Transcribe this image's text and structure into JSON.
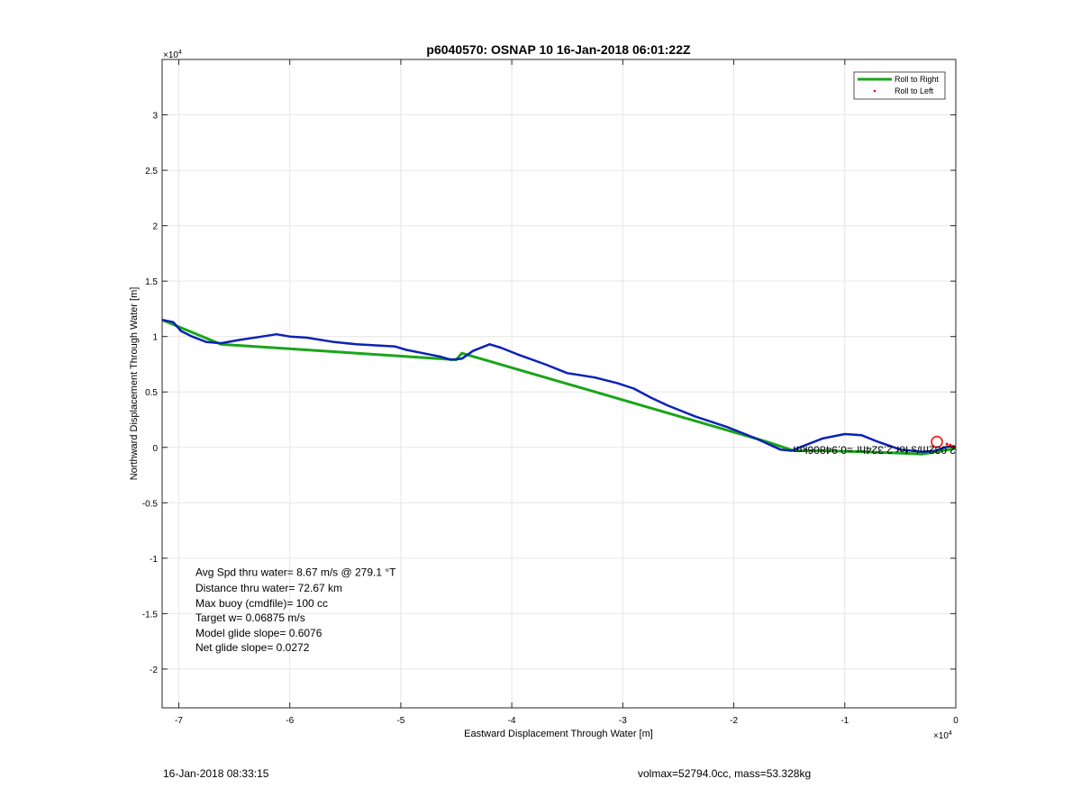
{
  "chart_data": {
    "type": "line",
    "title": "p6040570: OSNAP 10 16-Jan-2018 06:01:22Z",
    "xlabel": "Eastward Displacement Through Water [m]",
    "ylabel": "Northward Displacement Through Water [m]",
    "x_exponent_label": "×10",
    "x_exponent": "4",
    "y_exponent_label": "×10",
    "y_exponent": "4",
    "xlim": [
      -7.15,
      0
    ],
    "ylim": [
      -2.35,
      3.5
    ],
    "xticks": [
      -7,
      -6,
      -5,
      -4,
      -3,
      -2,
      -1,
      0
    ],
    "yticks": [
      -2,
      -1.5,
      -1,
      -0.5,
      0,
      0.5,
      1,
      1.5,
      2,
      2.5,
      3
    ],
    "xtick_labels": [
      "-7",
      "-6",
      "-5",
      "-4",
      "-3",
      "-2",
      "-1",
      "0"
    ],
    "ytick_labels": [
      "-2",
      "-1.5",
      "-1",
      "-0.5",
      "0",
      "0.5",
      "1",
      "1.5",
      "2",
      "2.5",
      "3"
    ],
    "grid": true,
    "legend_position": "top-right",
    "legend": [
      {
        "name": "Roll to Right",
        "color": "#1aa51a",
        "style": "line"
      },
      {
        "name": "Roll to Left",
        "color": "#ff0000",
        "style": "dot"
      }
    ],
    "series": [
      {
        "name": "Roll to Right",
        "color": "#1aa51a",
        "x": [
          -7.15,
          -6.62,
          -4.5,
          -4.45,
          -1.7,
          -1.46,
          -1.2,
          -0.8,
          -0.3,
          0
        ],
        "y": [
          1.15,
          0.93,
          0.79,
          0.85,
          0.05,
          -0.03,
          -0.03,
          -0.04,
          -0.06,
          -0.01
        ]
      },
      {
        "name": "",
        "color": "#0a22b4",
        "x": [
          -7.15,
          -7.05,
          -6.98,
          -6.88,
          -6.75,
          -6.62,
          -6.45,
          -6.25,
          -6.12,
          -6.0,
          -5.85,
          -5.6,
          -5.4,
          -5.05,
          -4.95,
          -4.8,
          -4.65,
          -4.55,
          -4.45,
          -4.35,
          -4.2,
          -4.1,
          -3.95,
          -3.7,
          -3.5,
          -3.25,
          -3.05,
          -2.9,
          -2.75,
          -2.6,
          -2.35,
          -2.05,
          -1.8,
          -1.58,
          -1.48,
          -1.38,
          -1.2,
          -1.0,
          -0.85,
          -0.7,
          -0.5,
          -0.3,
          -0.18,
          -0.1,
          -0.05,
          0
        ],
        "y": [
          1.15,
          1.13,
          1.05,
          1.0,
          0.95,
          0.94,
          0.97,
          1.0,
          1.02,
          1.0,
          0.99,
          0.95,
          0.93,
          0.91,
          0.88,
          0.85,
          0.82,
          0.79,
          0.8,
          0.87,
          0.93,
          0.9,
          0.84,
          0.75,
          0.67,
          0.63,
          0.58,
          0.53,
          0.45,
          0.38,
          0.28,
          0.18,
          0.08,
          -0.02,
          -0.03,
          0.01,
          0.08,
          0.12,
          0.11,
          0.05,
          -0.02,
          -0.04,
          -0.03,
          0.0,
          0.01,
          0.0
        ]
      },
      {
        "name": "Roll to Left",
        "color": "#ff0000",
        "x": [
          -0.08,
          -0.05,
          -0.02
        ],
        "y": [
          0.03,
          0.02,
          0.01
        ]
      }
    ],
    "annotations": [
      {
        "text": "Avg Spd thru water=  8.67 m/s @ 279.1 °T",
        "x": -6.85,
        "y": -1.16
      },
      {
        "text": "Distance thru water= 72.67 km",
        "x": -6.85,
        "y": -1.3
      },
      {
        "text": "Max buoy (cmdfile)= 100 cc",
        "x": -6.85,
        "y": -1.44
      },
      {
        "text": "Target w= 0.06875 m/s",
        "x": -6.85,
        "y": -1.57
      },
      {
        "text": "Model glide slope= 0.6076",
        "x": -6.85,
        "y": -1.71
      },
      {
        "text": "Net glide slope= 0.0272",
        "x": -6.85,
        "y": -1.84
      },
      {
        "text": "2.032m/s for 2.324hr =0.94806km",
        "x": 0,
        "y": 0.01,
        "rotated": true
      }
    ],
    "marker": {
      "type": "circle",
      "x": -0.17,
      "y": 0.05,
      "color": "#ff0000"
    }
  },
  "footer": {
    "timestamp": "16-Jan-2018 08:33:15",
    "info": "volmax=52794.0cc, mass=53.328kg"
  }
}
